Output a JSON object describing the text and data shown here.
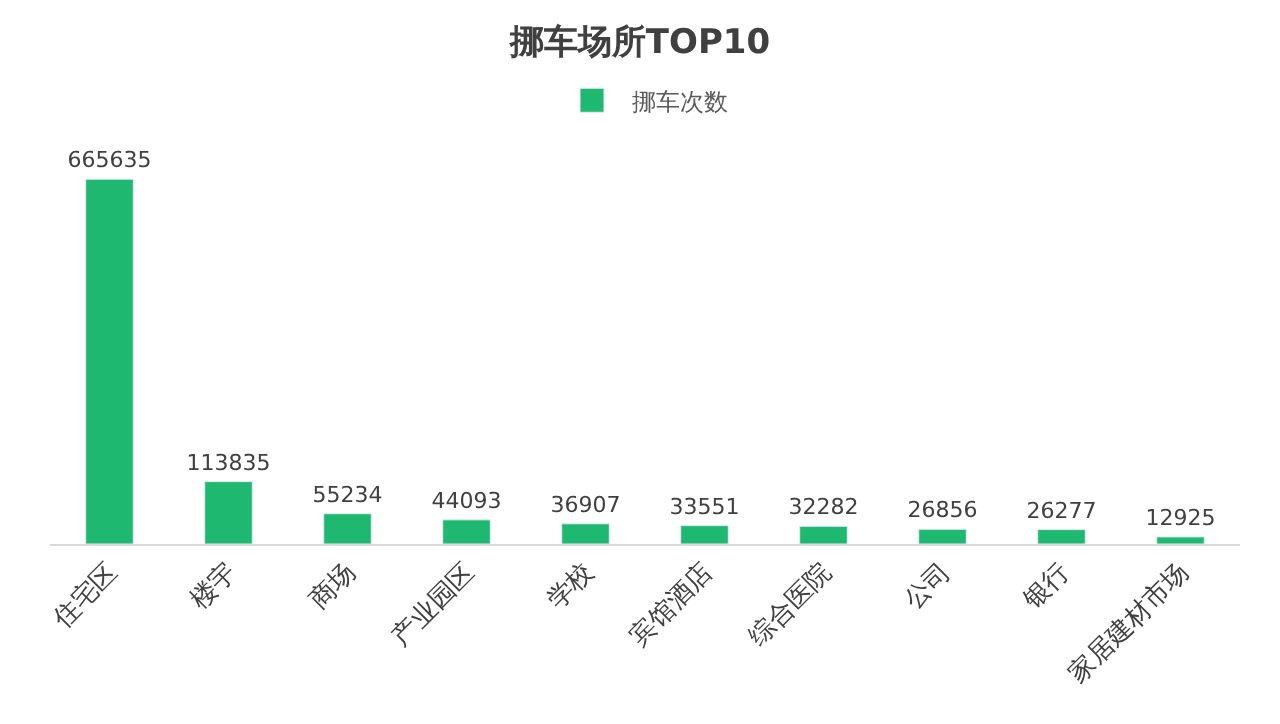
{
  "chart_data": {
    "type": "bar",
    "title": "挪车场所TOP10",
    "categories": [
      "住宅区",
      "楼宇",
      "商场",
      "产业园区",
      "学校",
      "宾馆酒店",
      "综合医院",
      "公司",
      "银行",
      "家居建材市场"
    ],
    "series": [
      {
        "name": "挪车次数",
        "color": "#1fb870",
        "values": [
          665635,
          113835,
          55234,
          44093,
          36907,
          33551,
          32282,
          26856,
          26277,
          12925
        ]
      }
    ],
    "data_labels": true,
    "legend": "top"
  }
}
